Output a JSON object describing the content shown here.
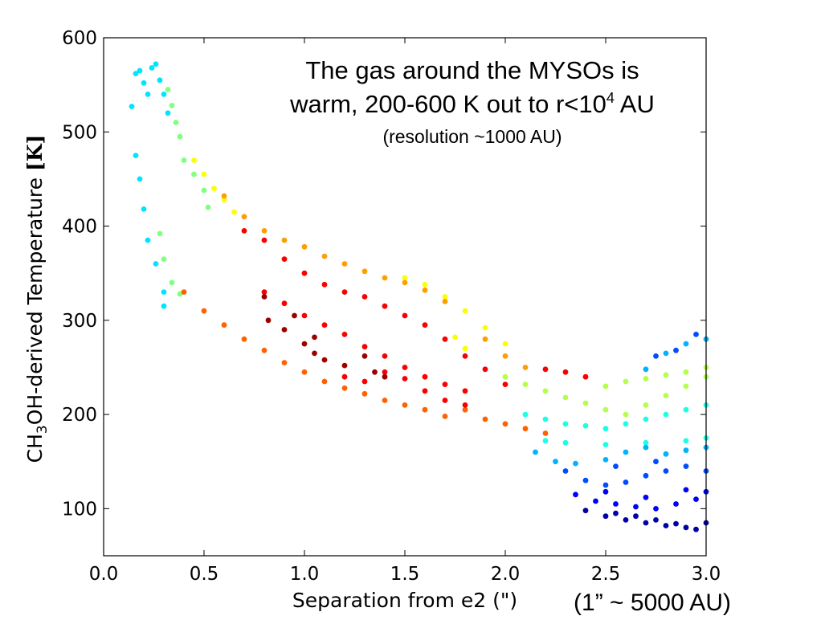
{
  "chart_data": {
    "type": "scatter",
    "title": "",
    "xlabel": "Separation from e2 (\")",
    "ylabel_prefix": "CH",
    "ylabel_sub": "3",
    "ylabel_suffix": "OH-derived Temperature ",
    "ylabel_unit": "[K]",
    "xlim": [
      0.0,
      3.0
    ],
    "ylim": [
      50,
      600
    ],
    "x_ticks": [
      "0.0",
      "0.5",
      "1.0",
      "1.5",
      "2.0",
      "2.5",
      "3.0"
    ],
    "y_ticks": [
      "100",
      "200",
      "300",
      "400",
      "500",
      "600"
    ],
    "grid": false,
    "colormap": "jet",
    "annotations": {
      "line1": "The gas around the MYSOs is",
      "line2_prefix": "warm, 200-600 K out to r<10",
      "line2_sup": "4",
      "line2_suffix": " AU",
      "line3": "(resolution ~1000 AU)",
      "x_note": "(1” ~ 5000 AU)"
    },
    "series": [
      {
        "color_value": 0.35,
        "points": [
          [
            0.14,
            527
          ],
          [
            0.16,
            562
          ],
          [
            0.18,
            565
          ],
          [
            0.2,
            552
          ],
          [
            0.22,
            540
          ],
          [
            0.24,
            568
          ],
          [
            0.26,
            572
          ],
          [
            0.28,
            555
          ],
          [
            0.3,
            540
          ],
          [
            0.32,
            520
          ],
          [
            0.16,
            475
          ],
          [
            0.18,
            450
          ],
          [
            0.2,
            418
          ],
          [
            0.22,
            385
          ],
          [
            0.26,
            360
          ],
          [
            0.3,
            330
          ],
          [
            0.3,
            315
          ]
        ]
      },
      {
        "color_value": 0.5,
        "points": [
          [
            0.32,
            545
          ],
          [
            0.34,
            528
          ],
          [
            0.36,
            510
          ],
          [
            0.38,
            495
          ],
          [
            0.4,
            470
          ],
          [
            0.45,
            455
          ],
          [
            0.5,
            438
          ],
          [
            0.52,
            420
          ],
          [
            0.28,
            392
          ],
          [
            0.3,
            365
          ],
          [
            0.34,
            340
          ],
          [
            0.38,
            328
          ]
        ]
      },
      {
        "color_value": 0.62,
        "points": [
          [
            0.45,
            470
          ],
          [
            0.5,
            455
          ],
          [
            0.55,
            440
          ],
          [
            0.6,
            428
          ],
          [
            0.65,
            415
          ],
          [
            1.5,
            345
          ],
          [
            1.6,
            338
          ],
          [
            1.7,
            325
          ],
          [
            1.8,
            310
          ],
          [
            1.9,
            292
          ],
          [
            2.0,
            275
          ],
          [
            1.75,
            282
          ],
          [
            1.8,
            270
          ]
        ]
      },
      {
        "color_value": 0.72,
        "points": [
          [
            0.6,
            432
          ],
          [
            0.7,
            410
          ],
          [
            0.8,
            395
          ],
          [
            0.9,
            385
          ],
          [
            1.0,
            378
          ],
          [
            1.1,
            368
          ],
          [
            1.2,
            360
          ],
          [
            1.3,
            352
          ],
          [
            1.4,
            345
          ],
          [
            1.5,
            340
          ],
          [
            1.6,
            332
          ],
          [
            1.7,
            320
          ],
          [
            1.9,
            280
          ],
          [
            2.0,
            262
          ],
          [
            2.1,
            250
          ]
        ]
      },
      {
        "color_value": 0.78,
        "points": [
          [
            0.4,
            330
          ],
          [
            0.5,
            310
          ],
          [
            0.6,
            295
          ],
          [
            0.7,
            280
          ],
          [
            0.8,
            268
          ],
          [
            0.9,
            255
          ],
          [
            1.0,
            245
          ],
          [
            1.1,
            235
          ],
          [
            1.2,
            228
          ],
          [
            1.3,
            222
          ],
          [
            1.4,
            215
          ],
          [
            1.5,
            210
          ],
          [
            1.6,
            205
          ],
          [
            1.7,
            198
          ],
          [
            1.8,
            205
          ],
          [
            1.9,
            195
          ],
          [
            2.0,
            190
          ],
          [
            2.1,
            185
          ],
          [
            2.2,
            180
          ]
        ]
      },
      {
        "color_value": 0.88,
        "points": [
          [
            0.7,
            395
          ],
          [
            0.8,
            385
          ],
          [
            0.9,
            365
          ],
          [
            1.0,
            350
          ],
          [
            1.1,
            338
          ],
          [
            1.2,
            330
          ],
          [
            1.3,
            325
          ],
          [
            1.4,
            315
          ],
          [
            1.5,
            305
          ],
          [
            1.6,
            295
          ],
          [
            1.7,
            280
          ],
          [
            1.8,
            262
          ],
          [
            1.9,
            248
          ],
          [
            2.0,
            232
          ],
          [
            0.8,
            330
          ],
          [
            0.9,
            318
          ],
          [
            1.0,
            305
          ],
          [
            1.1,
            295
          ],
          [
            1.2,
            285
          ],
          [
            1.3,
            272
          ],
          [
            1.4,
            262
          ],
          [
            1.5,
            250
          ],
          [
            1.6,
            240
          ],
          [
            1.7,
            232
          ],
          [
            1.8,
            225
          ],
          [
            1.2,
            240
          ],
          [
            1.3,
            235
          ],
          [
            1.4,
            245
          ],
          [
            1.5,
            238
          ],
          [
            1.6,
            225
          ],
          [
            1.7,
            215
          ],
          [
            1.8,
            210
          ],
          [
            2.3,
            245
          ],
          [
            2.2,
            248
          ],
          [
            2.4,
            240
          ]
        ]
      },
      {
        "color_value": 0.97,
        "points": [
          [
            0.8,
            325
          ],
          [
            0.82,
            300
          ],
          [
            0.9,
            290
          ],
          [
            1.0,
            275
          ],
          [
            1.05,
            265
          ],
          [
            1.1,
            258
          ],
          [
            1.2,
            252
          ],
          [
            1.3,
            262
          ],
          [
            1.35,
            245
          ],
          [
            1.4,
            240
          ],
          [
            0.95,
            305
          ],
          [
            1.05,
            282
          ]
        ]
      },
      {
        "color_value": 0.55,
        "points": [
          [
            2.0,
            240
          ],
          [
            2.1,
            232
          ],
          [
            2.2,
            225
          ],
          [
            2.3,
            218
          ],
          [
            2.4,
            212
          ],
          [
            2.5,
            205
          ],
          [
            2.6,
            200
          ],
          [
            2.7,
            210
          ],
          [
            2.8,
            220
          ],
          [
            2.9,
            230
          ],
          [
            3.0,
            240
          ],
          [
            2.5,
            230
          ],
          [
            2.6,
            235
          ],
          [
            2.7,
            238
          ],
          [
            2.8,
            242
          ],
          [
            2.9,
            245
          ],
          [
            3.0,
            250
          ]
        ]
      },
      {
        "color_value": 0.4,
        "points": [
          [
            2.1,
            200
          ],
          [
            2.2,
            195
          ],
          [
            2.3,
            190
          ],
          [
            2.4,
            188
          ],
          [
            2.5,
            185
          ],
          [
            2.6,
            190
          ],
          [
            2.7,
            195
          ],
          [
            2.8,
            200
          ],
          [
            2.9,
            205
          ],
          [
            3.0,
            210
          ],
          [
            2.2,
            172
          ],
          [
            2.3,
            170
          ],
          [
            2.5,
            168
          ],
          [
            2.7,
            170
          ],
          [
            2.9,
            172
          ],
          [
            3.0,
            175
          ]
        ]
      },
      {
        "color_value": 0.3,
        "points": [
          [
            2.15,
            160
          ],
          [
            2.25,
            150
          ],
          [
            2.35,
            148
          ],
          [
            2.5,
            152
          ],
          [
            2.6,
            160
          ],
          [
            2.7,
            165
          ],
          [
            2.8,
            158
          ],
          [
            2.9,
            162
          ],
          [
            3.0,
            165
          ],
          [
            2.7,
            248
          ],
          [
            2.8,
            265
          ],
          [
            2.9,
            275
          ],
          [
            3.0,
            280
          ]
        ]
      },
      {
        "color_value": 0.2,
        "points": [
          [
            2.3,
            140
          ],
          [
            2.4,
            130
          ],
          [
            2.5,
            125
          ],
          [
            2.6,
            128
          ],
          [
            2.7,
            135
          ],
          [
            2.8,
            140
          ],
          [
            2.9,
            145
          ],
          [
            3.0,
            140
          ],
          [
            2.55,
            145
          ],
          [
            2.75,
            150
          ],
          [
            2.85,
            268
          ],
          [
            2.95,
            285
          ],
          [
            2.75,
            262
          ]
        ]
      },
      {
        "color_value": 0.12,
        "points": [
          [
            2.35,
            115
          ],
          [
            2.45,
            108
          ],
          [
            2.55,
            105
          ],
          [
            2.65,
            102
          ],
          [
            2.75,
            100
          ],
          [
            2.85,
            105
          ],
          [
            2.95,
            110
          ],
          [
            3.0,
            118
          ],
          [
            2.5,
            118
          ],
          [
            2.7,
            112
          ],
          [
            2.9,
            120
          ]
        ]
      },
      {
        "color_value": 0.04,
        "points": [
          [
            2.4,
            98
          ],
          [
            2.5,
            92
          ],
          [
            2.6,
            88
          ],
          [
            2.7,
            85
          ],
          [
            2.8,
            82
          ],
          [
            2.9,
            80
          ],
          [
            3.0,
            85
          ],
          [
            2.55,
            95
          ],
          [
            2.65,
            92
          ],
          [
            2.75,
            88
          ],
          [
            2.85,
            84
          ],
          [
            2.95,
            78
          ]
        ]
      }
    ]
  }
}
